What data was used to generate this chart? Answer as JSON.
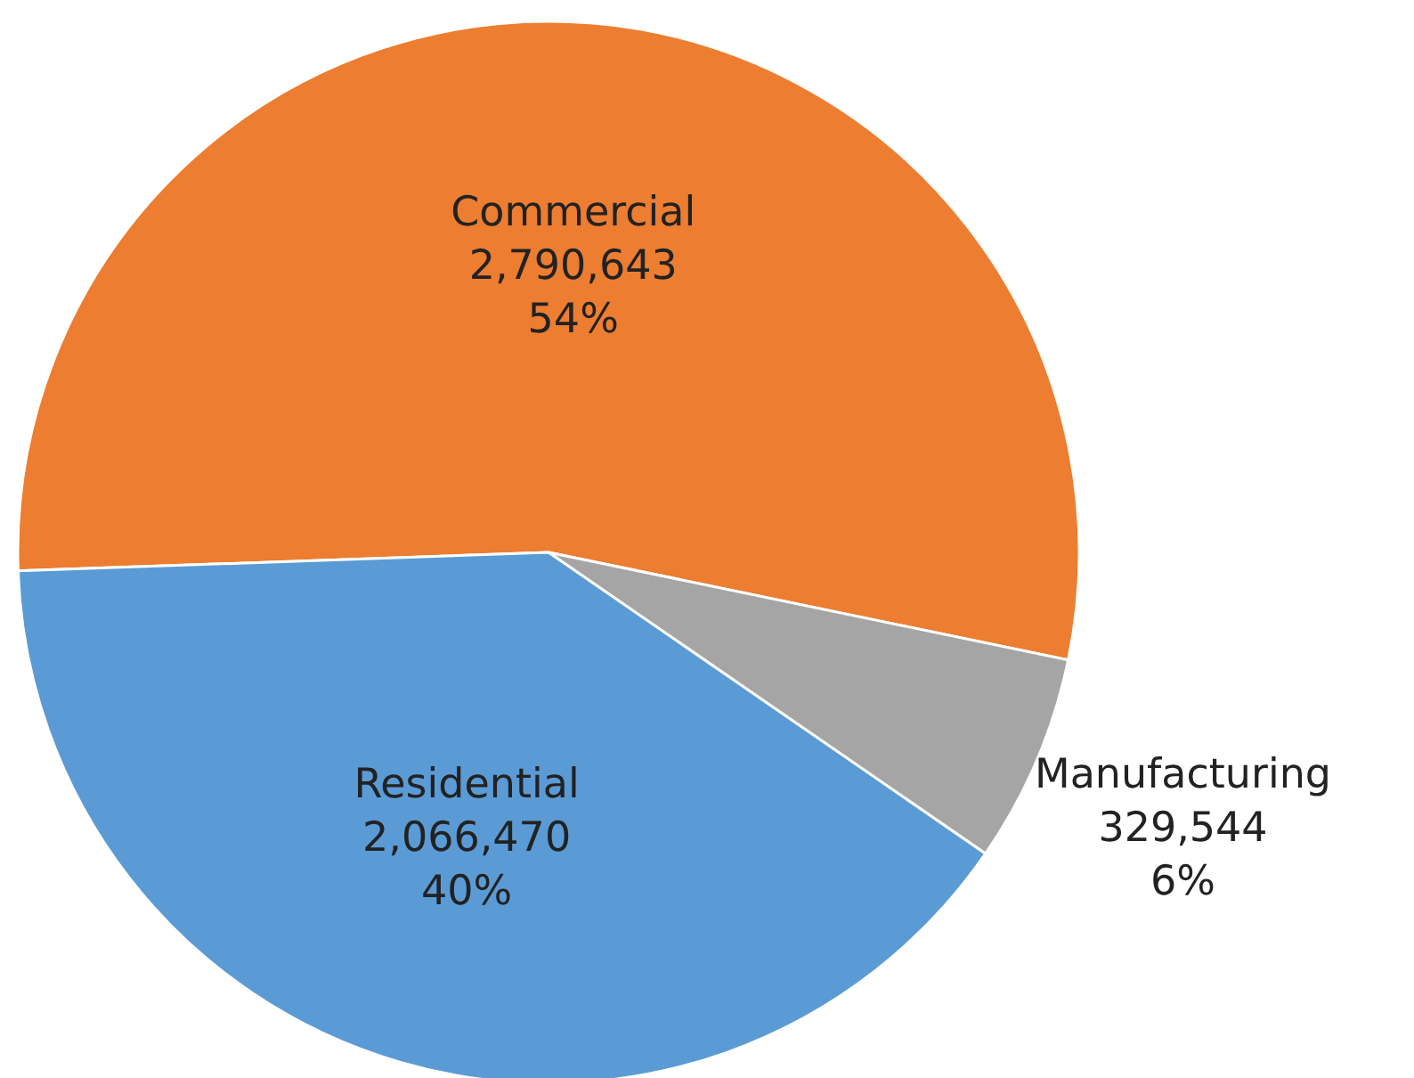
{
  "chart_data": {
    "type": "pie",
    "categories": [
      "Commercial",
      "Manufacturing",
      "Residential"
    ],
    "values": [
      2790643,
      329544,
      2066470
    ],
    "colors": [
      "#ed7d31",
      "#a5a5a5",
      "#5b9bd5"
    ],
    "value_labels": [
      "2,790,643\n54%",
      "329,544\n6%",
      "2,066,470\n40%"
    ]
  }
}
